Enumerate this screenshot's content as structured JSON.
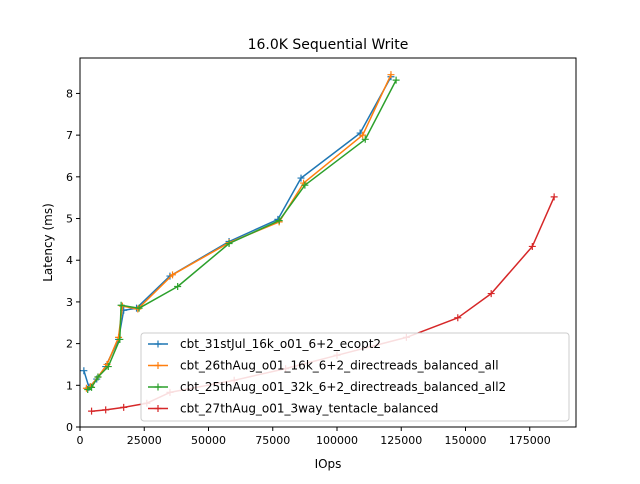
{
  "chart_data": {
    "type": "line",
    "title": "16.0K  Sequential Write",
    "xlabel": "IOps",
    "ylabel": "Latency (ms)",
    "xlim": [
      0,
      193000
    ],
    "ylim": [
      0,
      8.85
    ],
    "xticks": [
      0,
      25000,
      50000,
      75000,
      100000,
      125000,
      150000,
      175000
    ],
    "yticks": [
      0,
      1,
      2,
      3,
      4,
      5,
      6,
      7,
      8
    ],
    "grid": false,
    "legend_position": "lower right",
    "marker": "+",
    "series": [
      {
        "name": "cbt_31stJul_16k_o01_6+2_ecopt2",
        "color": "#1f77b4",
        "points": [
          [
            1500,
            1.35
          ],
          [
            3500,
            0.95
          ],
          [
            6500,
            1.15
          ],
          [
            10000,
            1.45
          ],
          [
            15000,
            2.1
          ],
          [
            17000,
            2.8
          ],
          [
            22000,
            2.85
          ],
          [
            35000,
            3.62
          ],
          [
            58000,
            4.45
          ],
          [
            77000,
            4.98
          ],
          [
            86000,
            5.97
          ],
          [
            109000,
            7.05
          ],
          [
            121000,
            8.4
          ]
        ]
      },
      {
        "name": "cbt_26thAug_o01_16k_6+2_directreads_balanced_all",
        "color": "#ff7f0e",
        "points": [
          [
            2500,
            0.93
          ],
          [
            4000,
            0.97
          ],
          [
            7000,
            1.2
          ],
          [
            10500,
            1.5
          ],
          [
            15000,
            2.15
          ],
          [
            16500,
            2.9
          ],
          [
            22500,
            2.83
          ],
          [
            36000,
            3.65
          ],
          [
            58000,
            4.42
          ],
          [
            77500,
            4.92
          ],
          [
            87000,
            5.85
          ],
          [
            110000,
            7.0
          ],
          [
            121000,
            8.45
          ]
        ]
      },
      {
        "name": "cbt_25thAug_o01_32k_6+2_directreads_balanced_all2",
        "color": "#2ca02c",
        "points": [
          [
            3000,
            0.9
          ],
          [
            4500,
            0.95
          ],
          [
            7000,
            1.2
          ],
          [
            11000,
            1.45
          ],
          [
            15500,
            2.1
          ],
          [
            16000,
            2.92
          ],
          [
            23000,
            2.85
          ],
          [
            38000,
            3.37
          ],
          [
            58000,
            4.4
          ],
          [
            77500,
            4.95
          ],
          [
            87500,
            5.8
          ],
          [
            111000,
            6.9
          ],
          [
            123000,
            8.32
          ]
        ]
      },
      {
        "name": "cbt_27thAug_o01_3way_tentacle_balanced",
        "color": "#d62728",
        "points": [
          [
            4500,
            0.38
          ],
          [
            10000,
            0.41
          ],
          [
            17000,
            0.47
          ],
          [
            26000,
            0.57
          ],
          [
            35000,
            0.83
          ],
          [
            60000,
            1.12
          ],
          [
            80000,
            1.4
          ],
          [
            100000,
            1.72
          ],
          [
            127000,
            2.15
          ],
          [
            147000,
            2.62
          ],
          [
            160000,
            3.2
          ],
          [
            176000,
            4.33
          ],
          [
            184500,
            5.52
          ]
        ]
      }
    ]
  }
}
